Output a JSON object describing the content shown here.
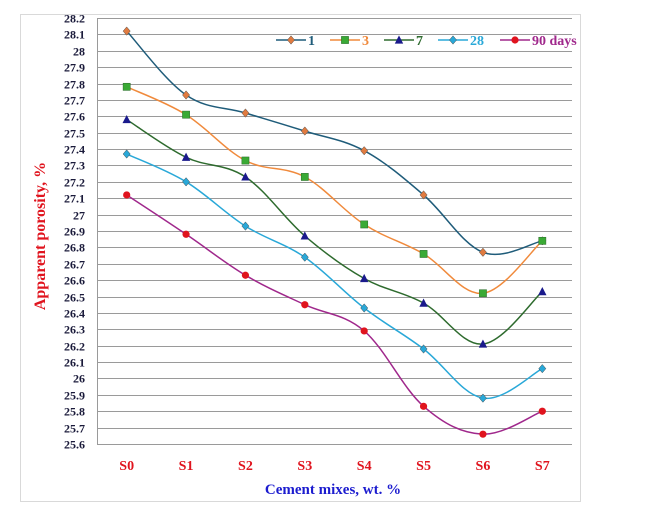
{
  "chart_data": {
    "type": "line",
    "title": "",
    "xlabel": "Cement mixes, wt. %",
    "ylabel": "Apparent porosity, %",
    "categories": [
      "S0",
      "S1",
      "S2",
      "S3",
      "S4",
      "S5",
      "S6",
      "S7"
    ],
    "ylim": [
      25.6,
      28.2
    ],
    "ytick_step": 0.1,
    "grid": true,
    "legend_position": "top-right",
    "series": [
      {
        "name": "1",
        "color": "#1f5c7a",
        "marker": "diamond",
        "marker_color": "#e07b40",
        "values": [
          28.12,
          27.73,
          27.62,
          27.51,
          27.39,
          27.12,
          26.77,
          26.84
        ]
      },
      {
        "name": "3",
        "color": "#f08a3c",
        "marker": "square",
        "marker_color": "#3aaa35",
        "values": [
          27.78,
          27.61,
          27.33,
          27.23,
          26.94,
          26.76,
          26.52,
          26.84
        ]
      },
      {
        "name": "7",
        "color": "#2e6b2e",
        "marker": "triangle",
        "marker_color": "#1a1a8c",
        "values": [
          27.58,
          27.35,
          27.23,
          26.87,
          26.61,
          26.46,
          26.21,
          26.53
        ]
      },
      {
        "name": "28",
        "color": "#29a8d8",
        "marker": "diamond",
        "marker_color": "#29a8d8",
        "values": [
          27.37,
          27.2,
          26.93,
          26.74,
          26.43,
          26.18,
          25.88,
          26.06
        ]
      },
      {
        "name": "90 days",
        "color": "#a0288c",
        "marker": "circle",
        "marker_color": "#e0141e",
        "values": [
          27.12,
          26.88,
          26.63,
          26.45,
          26.29,
          25.83,
          25.66,
          25.8
        ]
      }
    ]
  }
}
